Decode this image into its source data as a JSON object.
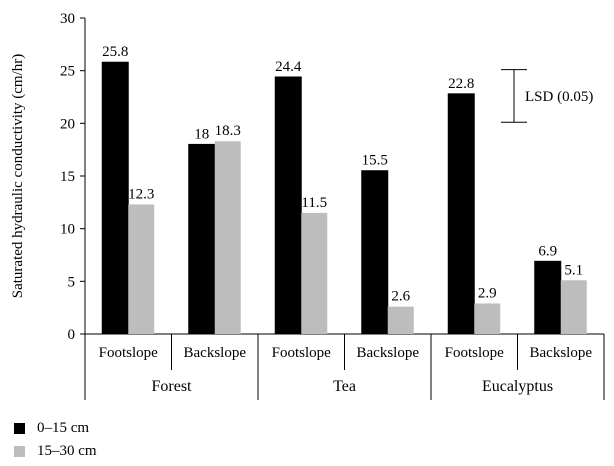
{
  "chart_data": {
    "type": "bar",
    "ylabel": "Saturated hydraulic conductivity (cm/hr)",
    "ylim": [
      0,
      30
    ],
    "yticks": [
      0,
      5,
      10,
      15,
      20,
      25,
      30
    ],
    "groups": [
      "Forest",
      "Tea",
      "Eucalyptus"
    ],
    "categories": [
      "Footslope",
      "Backslope",
      "Footslope",
      "Backslope",
      "Footslope",
      "Backslope"
    ],
    "series": [
      {
        "name": "0–15 cm",
        "color": "#000000",
        "values": [
          25.8,
          18,
          24.4,
          15.5,
          22.8,
          6.9
        ],
        "labels": [
          "25.8",
          "18",
          "24.4",
          "15.5",
          "22.8",
          "6.9"
        ]
      },
      {
        "name": "15–30 cm",
        "color": "#bdbdbd",
        "values": [
          12.3,
          18.3,
          11.5,
          2.6,
          2.9,
          5.1
        ],
        "labels": [
          "12.3",
          "18.3",
          "11.5",
          "2.6",
          "2.9",
          "5.1"
        ]
      }
    ],
    "annotation": {
      "label": "LSD (0.05)",
      "from": 25.1,
      "to": 20.1
    },
    "grid": false,
    "legend": "bottom-left"
  }
}
